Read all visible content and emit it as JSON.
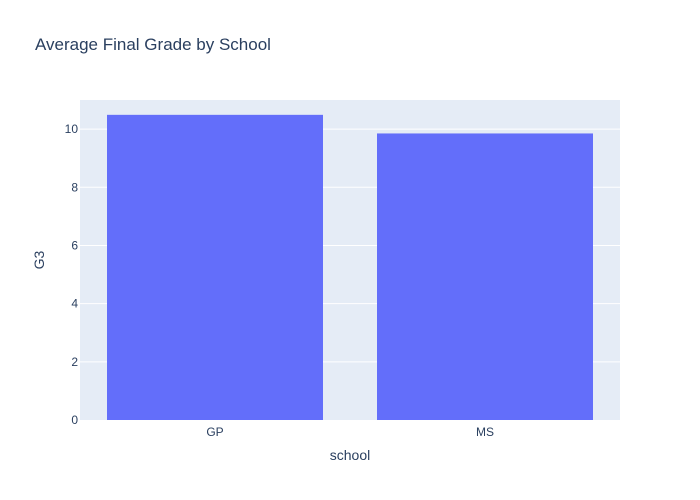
{
  "chart_data": {
    "type": "bar",
    "title": "Average Final Grade by School",
    "xlabel": "school",
    "ylabel": "G3",
    "categories": [
      "GP",
      "MS"
    ],
    "values": [
      10.49,
      9.85
    ],
    "ylim": [
      0,
      11
    ],
    "yticks": [
      0,
      2,
      4,
      6,
      8,
      10
    ],
    "grid": true,
    "colors": {
      "bar": "#636efa",
      "plot_bg": "#e5ecf6",
      "grid": "#ffffff",
      "text": "#2a3f5f"
    }
  }
}
